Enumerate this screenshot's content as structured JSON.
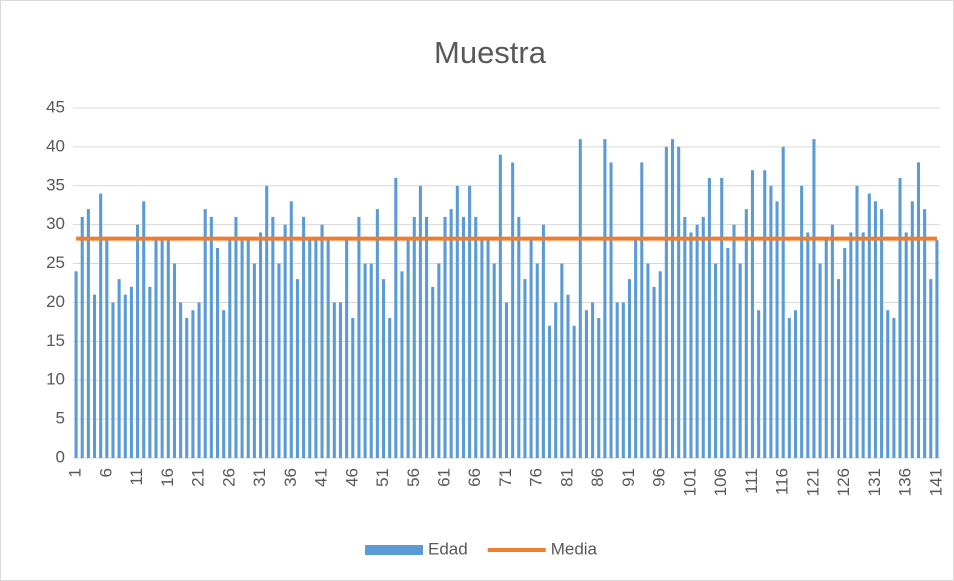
{
  "chart_data": {
    "type": "bar",
    "title": "Muestra",
    "categories": [
      "1",
      null,
      null,
      null,
      null,
      "6",
      null,
      null,
      null,
      null,
      "11",
      null,
      null,
      null,
      null,
      "16",
      null,
      null,
      null,
      null,
      "21",
      null,
      null,
      null,
      null,
      "26",
      null,
      null,
      null,
      null,
      "31",
      null,
      null,
      null,
      null,
      "36",
      null,
      null,
      null,
      null,
      "41",
      null,
      null,
      null,
      null,
      "46",
      null,
      null,
      null,
      null,
      "51",
      null,
      null,
      null,
      null,
      "56",
      null,
      null,
      null,
      null,
      "61",
      null,
      null,
      null,
      null,
      "66",
      null,
      null,
      null,
      null,
      "71",
      null,
      null,
      null,
      null,
      "76",
      null,
      null,
      null,
      null,
      "81",
      null,
      null,
      null,
      null,
      "86",
      null,
      null,
      null,
      null,
      "91",
      null,
      null,
      null,
      null,
      "96",
      null,
      null,
      null,
      null,
      "101",
      null,
      null,
      null,
      null,
      "106",
      null,
      null,
      null,
      null,
      "111",
      null,
      null,
      null,
      null,
      "116",
      null,
      null,
      null,
      null,
      "121",
      null,
      null,
      null,
      null,
      "126",
      null,
      null,
      null,
      null,
      "131",
      null,
      null,
      null,
      null,
      "136",
      null,
      null,
      null,
      null,
      "141"
    ],
    "series": [
      {
        "name": "Edad",
        "type": "bar",
        "color": "#5b9bd5",
        "values": [
          24,
          31,
          32,
          21,
          34,
          28,
          20,
          23,
          21,
          22,
          30,
          33,
          22,
          28,
          28,
          28,
          25,
          20,
          18,
          19,
          20,
          32,
          31,
          27,
          19,
          28,
          31,
          28,
          28,
          25,
          29,
          35,
          31,
          25,
          30,
          33,
          23,
          31,
          28,
          28,
          30,
          28,
          20,
          20,
          28,
          18,
          31,
          25,
          25,
          32,
          23,
          18,
          36,
          24,
          28,
          31,
          35,
          31,
          22,
          25,
          31,
          32,
          35,
          31,
          35,
          31,
          28,
          28,
          25,
          39,
          20,
          38,
          31,
          23,
          28,
          25,
          30,
          17,
          20,
          25,
          21,
          17,
          41,
          19,
          20,
          18,
          41,
          38,
          20,
          20,
          23,
          28,
          38,
          25,
          22,
          24,
          40,
          41,
          40,
          31,
          29,
          30,
          31,
          36,
          25,
          36,
          27,
          30,
          25,
          32,
          37,
          19,
          37,
          35,
          33,
          40,
          18,
          19,
          35,
          29,
          41,
          25,
          28,
          30,
          23,
          27,
          29,
          35,
          29,
          34,
          33,
          32,
          19,
          18,
          36,
          29,
          33,
          38,
          32,
          23,
          28
        ]
      },
      {
        "name": "Media",
        "type": "line",
        "color": "#ed7d31",
        "values": [
          28.2,
          28.2,
          28.2,
          28.2,
          28.2,
          28.2,
          28.2,
          28.2,
          28.2,
          28.2,
          28.2,
          28.2,
          28.2,
          28.2,
          28.2,
          28.2,
          28.2,
          28.2,
          28.2,
          28.2,
          28.2,
          28.2,
          28.2,
          28.2,
          28.2,
          28.2,
          28.2,
          28.2,
          28.2,
          28.2,
          28.2,
          28.2,
          28.2,
          28.2,
          28.2,
          28.2,
          28.2,
          28.2,
          28.2,
          28.2,
          28.2,
          28.2,
          28.2,
          28.2,
          28.2,
          28.2,
          28.2,
          28.2,
          28.2,
          28.2,
          28.2,
          28.2,
          28.2,
          28.2,
          28.2,
          28.2,
          28.2,
          28.2,
          28.2,
          28.2,
          28.2,
          28.2,
          28.2,
          28.2,
          28.2,
          28.2,
          28.2,
          28.2,
          28.2,
          28.2,
          28.2,
          28.2,
          28.2,
          28.2,
          28.2,
          28.2,
          28.2,
          28.2,
          28.2,
          28.2,
          28.2,
          28.2,
          28.2,
          28.2,
          28.2,
          28.2,
          28.2,
          28.2,
          28.2,
          28.2,
          28.2,
          28.2,
          28.2,
          28.2,
          28.2,
          28.2,
          28.2,
          28.2,
          28.2,
          28.2,
          28.2,
          28.2,
          28.2,
          28.2,
          28.2,
          28.2,
          28.2,
          28.2,
          28.2,
          28.2,
          28.2,
          28.2,
          28.2,
          28.2,
          28.2,
          28.2,
          28.2,
          28.2,
          28.2,
          28.2,
          28.2,
          28.2,
          28.2,
          28.2,
          28.2,
          28.2,
          28.2,
          28.2,
          28.2,
          28.2,
          28.2,
          28.2,
          28.2,
          28.2,
          28.2,
          28.2,
          28.2,
          28.2,
          28.2,
          28.2,
          28.2
        ]
      }
    ],
    "ylim": [
      0,
      45
    ],
    "yticks": [
      0,
      5,
      10,
      15,
      20,
      25,
      30,
      35,
      40,
      45
    ],
    "grid": true,
    "legend": "bottom"
  }
}
